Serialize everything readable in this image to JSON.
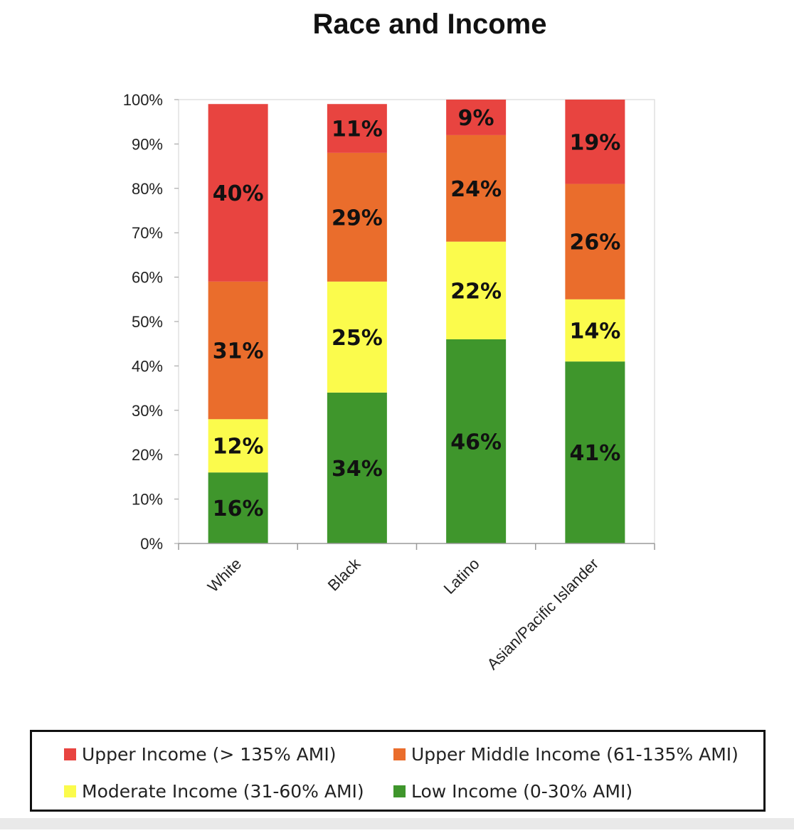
{
  "chart_data": {
    "type": "bar",
    "stacked": true,
    "title": "Race and Income",
    "xlabel": "",
    "ylabel": "",
    "ylim": [
      0,
      100
    ],
    "yticks": [
      "0%",
      "10%",
      "20%",
      "30%",
      "40%",
      "50%",
      "60%",
      "70%",
      "80%",
      "90%",
      "100%"
    ],
    "categories": [
      "White",
      "Black",
      "Latino",
      "Asian/Pacific Islander"
    ],
    "series": [
      {
        "name": "Low Income (0-30% AMI)",
        "color": "#3f962c",
        "values": [
          16,
          34,
          46,
          41
        ],
        "labels": [
          "16%",
          "34%",
          "46%",
          "41%"
        ]
      },
      {
        "name": "Moderate Income (31-60% AMI)",
        "color": "#fbfb4c",
        "values": [
          12,
          25,
          22,
          14
        ],
        "labels": [
          "12%",
          "25%",
          "22%",
          "14%"
        ]
      },
      {
        "name": "Upper Middle Income (61-135% AMI)",
        "color": "#ea6d2c",
        "values": [
          31,
          29,
          24,
          26
        ],
        "labels": [
          "31%",
          "29%",
          "24%",
          "26%"
        ]
      },
      {
        "name": "Upper Income (> 135% AMI)",
        "color": "#e84440",
        "values": [
          40,
          11,
          9,
          19
        ],
        "labels": [
          "40%",
          "11%",
          "9%",
          "19%"
        ]
      }
    ],
    "legend": {
      "placement": "bottom",
      "order": [
        3,
        2,
        1,
        0
      ]
    },
    "grid": false
  }
}
